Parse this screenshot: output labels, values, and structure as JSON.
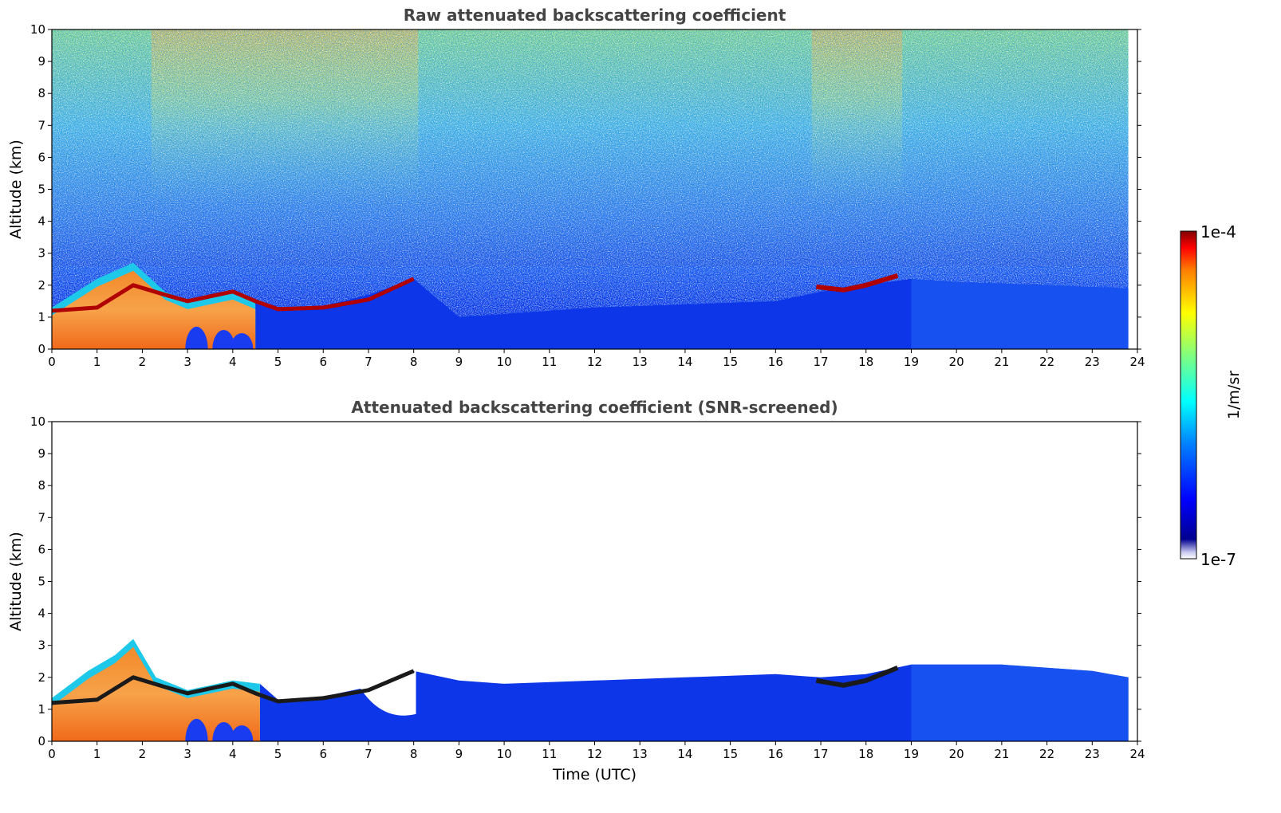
{
  "chart_data": [
    {
      "type": "heatmap",
      "title": "Raw attenuated backscattering coefficient",
      "xlabel": "",
      "ylabel": "Altitude (km)",
      "xlim": [
        0,
        24
      ],
      "ylim": [
        0,
        10
      ],
      "data_extent_x": [
        0,
        23.8
      ],
      "x_ticks": [
        "0",
        "1",
        "2",
        "3",
        "4",
        "5",
        "6",
        "7",
        "8",
        "9",
        "10",
        "11",
        "12",
        "13",
        "14",
        "15",
        "16",
        "17",
        "18",
        "19",
        "20",
        "21",
        "22",
        "23",
        "24"
      ],
      "y_ticks": [
        "0",
        "1",
        "2",
        "3",
        "4",
        "5",
        "6",
        "7",
        "8",
        "9",
        "10"
      ],
      "colorscale": "jet",
      "noise_top": true,
      "boundary_layer_top": [
        [
          0,
          1.3
        ],
        [
          1,
          2.2
        ],
        [
          1.8,
          2.7
        ],
        [
          2.5,
          1.8
        ],
        [
          3,
          1.5
        ],
        [
          4,
          1.8
        ],
        [
          4.5,
          1.5
        ],
        [
          5,
          1.3
        ],
        [
          6,
          1.35
        ],
        [
          7,
          1.7
        ],
        [
          8,
          2.2
        ],
        [
          9,
          1.0
        ],
        [
          12,
          1.3
        ],
        [
          16,
          1.5
        ],
        [
          17,
          1.8
        ],
        [
          18,
          2.0
        ],
        [
          19,
          2.2
        ],
        [
          20,
          2.1
        ],
        [
          22,
          2.0
        ],
        [
          23.8,
          1.9
        ]
      ],
      "cloud_layer": [
        [
          0,
          1.2
        ],
        [
          1,
          1.3
        ],
        [
          1.8,
          2.0
        ],
        [
          2.5,
          1.7
        ],
        [
          3,
          1.5
        ],
        [
          4,
          1.8
        ],
        [
          4.5,
          1.5
        ],
        [
          5,
          1.25
        ],
        [
          6,
          1.3
        ],
        [
          7,
          1.55
        ],
        [
          8,
          2.2
        ]
      ],
      "cloud_layer_2": [
        [
          16.9,
          1.95
        ],
        [
          17.5,
          1.85
        ],
        [
          18,
          2.0
        ],
        [
          18.7,
          2.3
        ]
      ]
    },
    {
      "type": "heatmap",
      "title": "Attenuated backscattering coefficient (SNR-screened)",
      "xlabel": "Time (UTC)",
      "ylabel": "Altitude (km)",
      "xlim": [
        0,
        24
      ],
      "ylim": [
        0,
        10
      ],
      "data_extent_x": [
        0,
        23.8
      ],
      "x_ticks": [
        "0",
        "1",
        "2",
        "3",
        "4",
        "5",
        "6",
        "7",
        "8",
        "9",
        "10",
        "11",
        "12",
        "13",
        "14",
        "15",
        "16",
        "17",
        "18",
        "19",
        "20",
        "21",
        "22",
        "23",
        "24"
      ],
      "y_ticks": [
        "0",
        "1",
        "2",
        "3",
        "4",
        "5",
        "6",
        "7",
        "8",
        "9",
        "10"
      ],
      "colorscale": "jet",
      "noise_top": false,
      "boundary_layer_top": [
        [
          0,
          1.35
        ],
        [
          0.8,
          2.2
        ],
        [
          1.4,
          2.7
        ],
        [
          1.8,
          3.2
        ],
        [
          2.3,
          2.0
        ],
        [
          3,
          1.6
        ],
        [
          4,
          1.9
        ],
        [
          4.6,
          1.8
        ],
        [
          5,
          1.3
        ],
        [
          6,
          1.4
        ],
        [
          7,
          1.7
        ],
        [
          8,
          2.2
        ],
        [
          9,
          1.9
        ],
        [
          10,
          1.8
        ],
        [
          12,
          1.9
        ],
        [
          14,
          2.0
        ],
        [
          16,
          2.1
        ],
        [
          17,
          2.0
        ],
        [
          18,
          2.1
        ],
        [
          19,
          2.4
        ],
        [
          21,
          2.4
        ],
        [
          23,
          2.2
        ],
        [
          23.8,
          2.0
        ]
      ],
      "gap_region": [
        [
          6.8,
          0.8
        ],
        [
          8,
          1.5
        ]
      ],
      "cloud_layer": [
        [
          0,
          1.2
        ],
        [
          1,
          1.3
        ],
        [
          1.8,
          2.0
        ],
        [
          2.5,
          1.7
        ],
        [
          3,
          1.5
        ],
        [
          4,
          1.8
        ],
        [
          4.5,
          1.5
        ],
        [
          5,
          1.25
        ],
        [
          6,
          1.35
        ],
        [
          7,
          1.6
        ],
        [
          8,
          2.2
        ]
      ],
      "cloud_layer_2": [
        [
          16.9,
          1.9
        ],
        [
          17.5,
          1.75
        ],
        [
          18,
          1.9
        ],
        [
          18.7,
          2.3
        ]
      ]
    }
  ],
  "colorbar": {
    "label": "1/m/sr",
    "max_label": "1e-4",
    "min_label": "1e-7",
    "scale": "log"
  }
}
